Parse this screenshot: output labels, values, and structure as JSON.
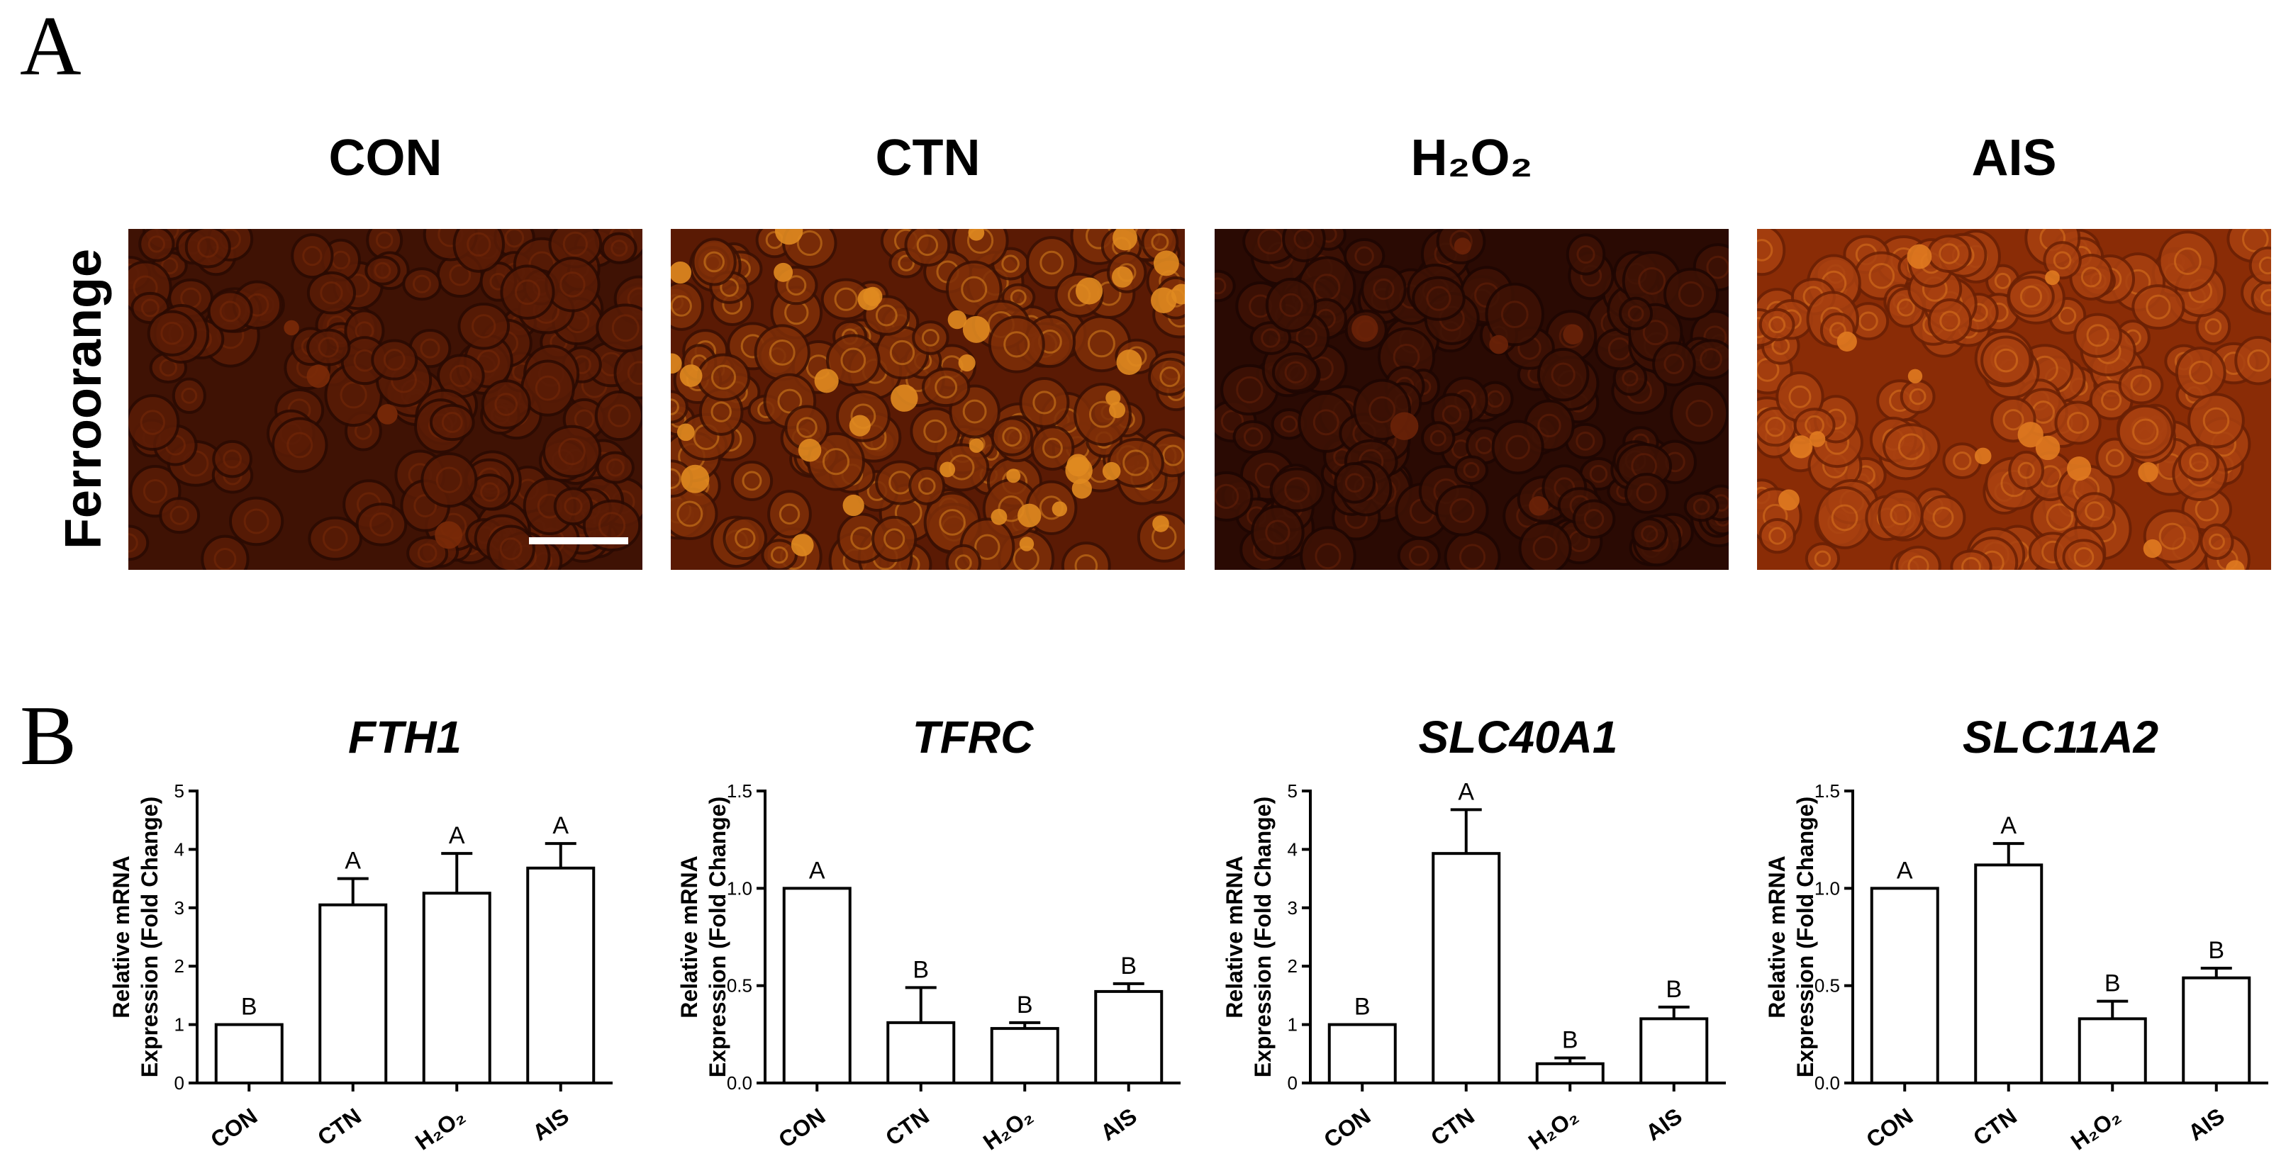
{
  "panel_a": {
    "label": "A",
    "row_label": "Ferroorange",
    "columns": [
      "CON",
      "CTN",
      "H₂O₂",
      "AIS"
    ]
  },
  "panel_b": {
    "label": "B"
  },
  "chart_data": [
    {
      "type": "bar",
      "title": "FTH1",
      "ylabel": [
        "Relative mRNA",
        "Expression (Fold Change)"
      ],
      "categories": [
        "CON",
        "CTN",
        "H₂O₂",
        "AIS"
      ],
      "values": [
        1,
        3.05,
        3.25,
        3.68
      ],
      "errors": [
        0,
        0.45,
        0.68,
        0.42
      ],
      "significance": [
        "B",
        "A",
        "A",
        "A"
      ],
      "color": "#ffffff",
      "ylim": [
        0,
        5
      ],
      "yticks": [
        0,
        1,
        2,
        3,
        4,
        5
      ]
    },
    {
      "type": "bar",
      "title": "TFRC",
      "ylabel": [
        "Relative mRNA",
        "Expression (Fold Change)"
      ],
      "categories": [
        "CON",
        "CTN",
        "H₂O₂",
        "AIS"
      ],
      "values": [
        1.0,
        0.31,
        0.28,
        0.47
      ],
      "errors": [
        0,
        0.18,
        0.03,
        0.04
      ],
      "significance": [
        "A",
        "B",
        "B",
        "B"
      ],
      "color": "#ffffff",
      "ylim": [
        0,
        1.5
      ],
      "yticks": [
        {
          "value": 0,
          "label": "0.0"
        },
        {
          "value": 0.5,
          "label": "0.5"
        },
        {
          "value": 1,
          "label": "1.0"
        },
        {
          "value": 1.5,
          "label": "1.5"
        }
      ]
    },
    {
      "type": "bar",
      "title": "SLC40A1",
      "ylabel": [
        "Relative mRNA",
        "Expression (Fold Change)"
      ],
      "categories": [
        "CON",
        "CTN",
        "H₂O₂",
        "AIS"
      ],
      "values": [
        1,
        3.93,
        0.33,
        1.1
      ],
      "errors": [
        0,
        0.75,
        0.1,
        0.2
      ],
      "significance": [
        "B",
        "A",
        "B",
        "B"
      ],
      "color": "#ffffff",
      "ylim": [
        0,
        5
      ],
      "yticks": [
        0,
        1,
        2,
        3,
        4,
        5
      ]
    },
    {
      "type": "bar",
      "title": "SLC11A2",
      "ylabel": [
        "Relative mRNA",
        "Expression (Fold Change)"
      ],
      "categories": [
        "CON",
        "CTN",
        "H₂O₂",
        "AIS"
      ],
      "values": [
        1.0,
        1.12,
        0.33,
        0.54
      ],
      "errors": [
        0,
        0.11,
        0.09,
        0.05
      ],
      "significance": [
        "A",
        "A",
        "B",
        "B"
      ],
      "color": "#ffffff",
      "ylim": [
        0,
        1.5
      ],
      "yticks": [
        {
          "value": 0,
          "label": "0.0"
        },
        {
          "value": 0.5,
          "label": "0.5"
        },
        {
          "value": 1,
          "label": "1.0"
        },
        {
          "value": 1.5,
          "label": "1.5"
        }
      ]
    }
  ]
}
